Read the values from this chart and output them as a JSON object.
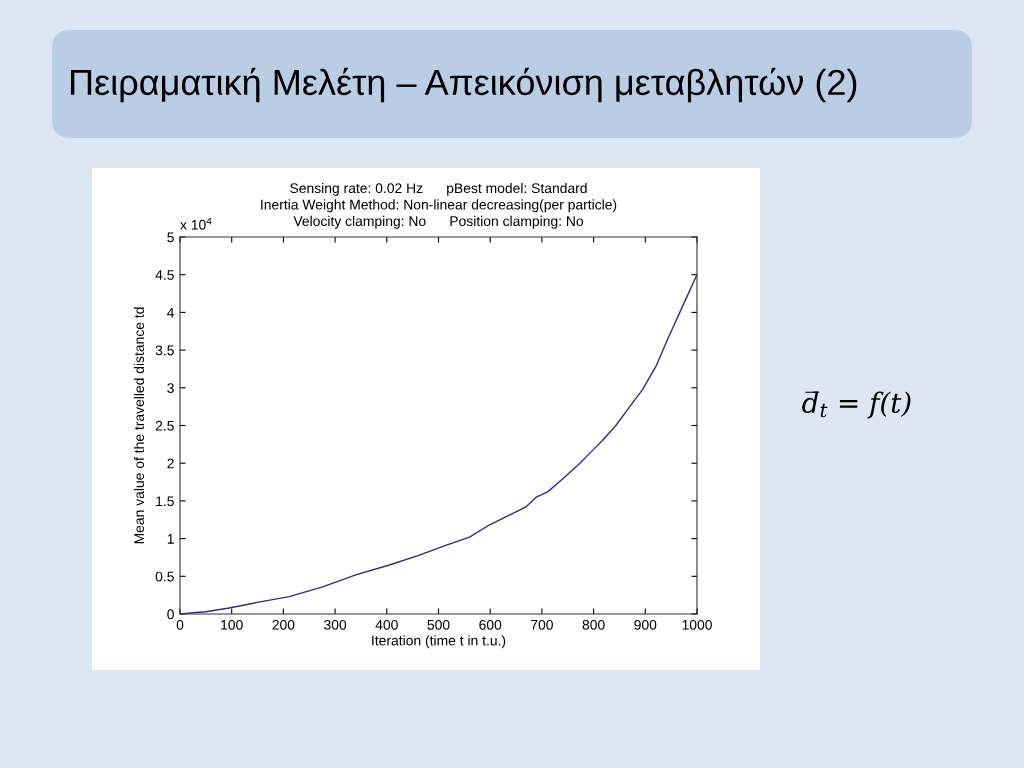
{
  "chart_data": {
    "type": "line",
    "title": "Πειραματική Μελέτη – Απεικόνιση μεταβλητών (2)",
    "subtitle": "Sensing rate: 0.02 Hz      pBest model: Standard\nInertia Weight Method: Non-linear decreasing(per particle)\nVelocity clamping: No      Position clamping: No",
    "xlabel": "Iteration (time t in t.u.)",
    "ylabel": "Mean value of the travelled distance td",
    "annotations": [
      "x 10$^{4}$",
      "d̅$_{t}$ = f(t)"
    ],
    "x": [
      0,
      31,
      50,
      95,
      147,
      211,
      276,
      340,
      405,
      463,
      514,
      560,
      598,
      637,
      669,
      689,
      711,
      740,
      772,
      798,
      817,
      843,
      869,
      895,
      921,
      943,
      972,
      1000
    ],
    "series": [
      {
        "color": "#2e2e80",
        "values": [
          0,
          0.02,
          0.03,
          0.08,
          0.15,
          0.23,
          0.36,
          0.52,
          0.65,
          0.78,
          0.91,
          1.02,
          1.18,
          1.31,
          1.42,
          1.55,
          1.62,
          1.79,
          1.99,
          2.17,
          2.3,
          2.5,
          2.74,
          2.98,
          3.29,
          3.64,
          4.08,
          4.5
        ]
      }
    ],
    "line_style": "solid",
    "xlim": [
      0,
      1000
    ],
    "xticks": [
      0,
      100,
      200,
      300,
      400,
      500,
      600,
      700,
      800,
      900,
      1000
    ],
    "ylim": [
      0,
      5
    ],
    "yticks": [
      0,
      0.5,
      1,
      1.5,
      2,
      2.5,
      3,
      3.5,
      4,
      4.5,
      5
    ]
  }
}
